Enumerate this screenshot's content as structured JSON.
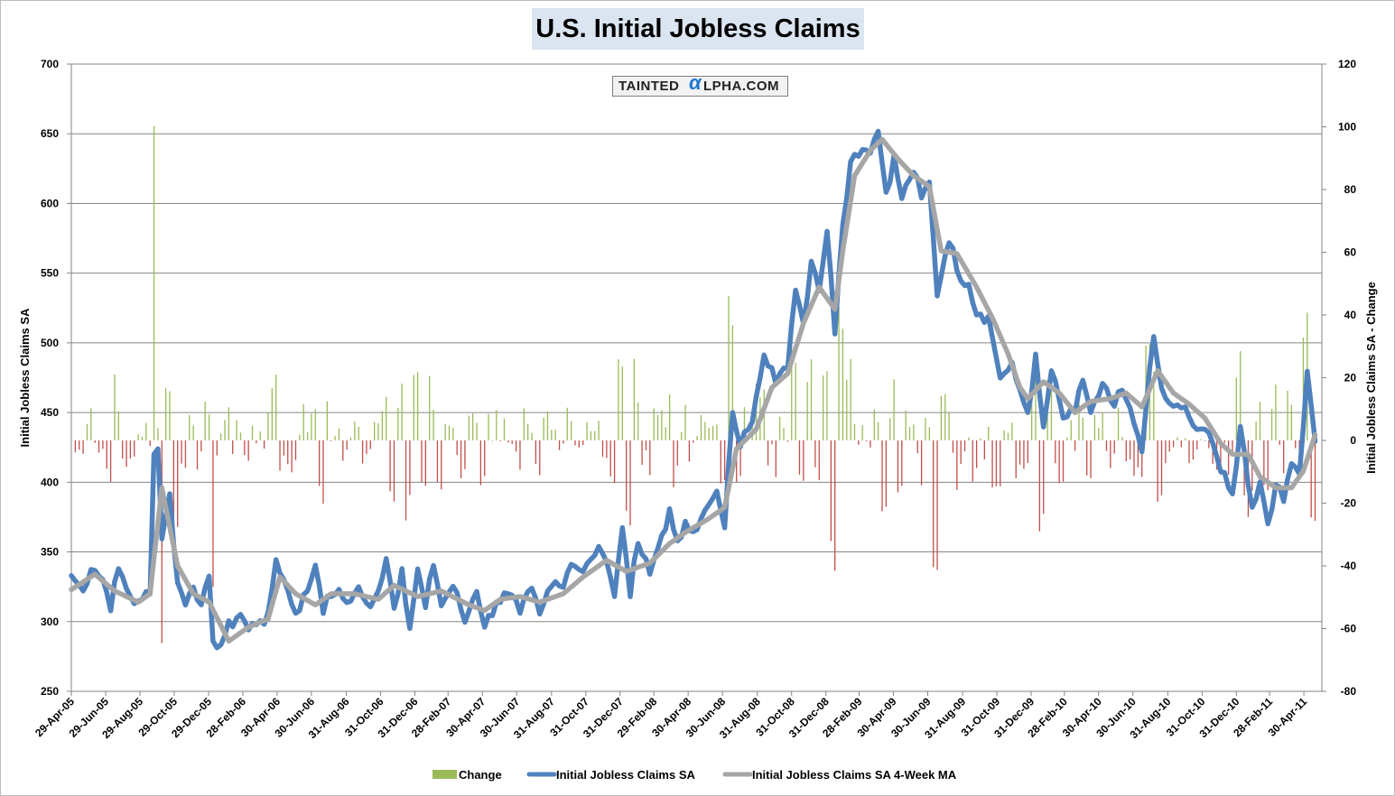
{
  "chart_data": {
    "type": "line",
    "title": "U.S. Initial Jobless Claims",
    "brand": {
      "prefix": "TAINTED",
      "alpha": "α",
      "suffix": "LPHA.COM"
    },
    "ylabel_left": "Initial Jobless Claims SA",
    "ylabel_right": "Initial Jobless Claims SA - Change",
    "ylim_left": [
      250,
      700
    ],
    "ylim_right": [
      -80,
      120
    ],
    "yticks_left": [
      "250",
      "300",
      "350",
      "400",
      "450",
      "500",
      "550",
      "600",
      "650",
      "700"
    ],
    "yticks_right": [
      "-80",
      "-60",
      "-40",
      "-20",
      "0",
      "20",
      "40",
      "60",
      "80",
      "100",
      "120"
    ],
    "x_tick_labels": [
      "29-Apr-05",
      "29-Jun-05",
      "29-Aug-05",
      "29-Oct-05",
      "29-Dec-05",
      "28-Feb-06",
      "30-Apr-06",
      "30-Jun-06",
      "31-Aug-06",
      "31-Oct-06",
      "31-Dec-06",
      "28-Feb-07",
      "30-Apr-07",
      "30-Jun-07",
      "31-Aug-07",
      "31-Oct-07",
      "31-Dec-07",
      "29-Feb-08",
      "30-Apr-08",
      "30-Jun-08",
      "31-Aug-08",
      "31-Oct-08",
      "31-Dec-08",
      "28-Feb-09",
      "30-Apr-09",
      "30-Jun-09",
      "31-Aug-09",
      "31-Oct-09",
      "31-Dec-09",
      "28-Feb-10",
      "30-Apr-10",
      "30-Jun-10",
      "31-Aug-10",
      "31-Oct-10",
      "31-Dec-10",
      "28-Feb-11",
      "30-Apr-11"
    ],
    "legend_position": "bottom",
    "grid": true,
    "x_start": "2005-04-29",
    "series": [
      {
        "name": "Change",
        "type": "bar",
        "axis": "right",
        "color_pos": "#9bbb59",
        "color_neg": "#c0504d"
      },
      {
        "name": "Initial Jobless Claims SA",
        "type": "line",
        "axis": "left",
        "color": "#4f81bd"
      },
      {
        "name": "Initial Jobless Claims SA 4-Week MA",
        "type": "line",
        "axis": "left",
        "color": "#a6a6a6"
      }
    ],
    "sa_anchors": [
      [
        "2005-04-29",
        333
      ],
      [
        "2005-05-20",
        322
      ],
      [
        "2005-06-03",
        340
      ],
      [
        "2005-06-24",
        330
      ],
      [
        "2005-07-08",
        312
      ],
      [
        "2005-07-22",
        338
      ],
      [
        "2005-08-12",
        318
      ],
      [
        "2005-08-26",
        312
      ],
      [
        "2005-09-09",
        320
      ],
      [
        "2005-09-16",
        324
      ],
      [
        "2005-09-23",
        420
      ],
      [
        "2005-09-30",
        424
      ],
      [
        "2005-10-07",
        362
      ],
      [
        "2005-10-21",
        390
      ],
      [
        "2005-11-04",
        328
      ],
      [
        "2005-11-18",
        312
      ],
      [
        "2005-12-02",
        328
      ],
      [
        "2005-12-16",
        312
      ],
      [
        "2005-12-30",
        328
      ],
      [
        "2006-01-06",
        286
      ],
      [
        "2006-01-20",
        284
      ],
      [
        "2006-02-03",
        296
      ],
      [
        "2006-02-24",
        306
      ],
      [
        "2006-03-10",
        294
      ],
      [
        "2006-03-24",
        300
      ],
      [
        "2006-04-14",
        302
      ],
      [
        "2006-04-28",
        345
      ],
      [
        "2006-05-12",
        330
      ],
      [
        "2006-06-02",
        306
      ],
      [
        "2006-06-23",
        322
      ],
      [
        "2006-07-07",
        342
      ],
      [
        "2006-07-21",
        310
      ],
      [
        "2006-08-11",
        322
      ],
      [
        "2006-09-01",
        314
      ],
      [
        "2006-09-22",
        324
      ],
      [
        "2006-10-13",
        308
      ],
      [
        "2006-10-27",
        322
      ],
      [
        "2006-11-10",
        348
      ],
      [
        "2006-11-24",
        310
      ],
      [
        "2006-12-08",
        338
      ],
      [
        "2006-12-22",
        296
      ],
      [
        "2007-01-05",
        336
      ],
      [
        "2007-01-19",
        310
      ],
      [
        "2007-02-02",
        342
      ],
      [
        "2007-02-16",
        312
      ],
      [
        "2007-03-09",
        326
      ],
      [
        "2007-03-30",
        300
      ],
      [
        "2007-04-20",
        324
      ],
      [
        "2007-05-04",
        296
      ],
      [
        "2007-05-25",
        314
      ],
      [
        "2007-06-15",
        320
      ],
      [
        "2007-07-06",
        306
      ],
      [
        "2007-07-27",
        324
      ],
      [
        "2007-08-10",
        304
      ],
      [
        "2007-08-31",
        330
      ],
      [
        "2007-09-21",
        326
      ],
      [
        "2007-10-05",
        344
      ],
      [
        "2007-10-26",
        334
      ],
      [
        "2007-11-16",
        350
      ],
      [
        "2007-12-07",
        348
      ],
      [
        "2007-12-21",
        318
      ],
      [
        "2008-01-04",
        368
      ],
      [
        "2008-01-18",
        322
      ],
      [
        "2008-02-01",
        356
      ],
      [
        "2008-02-22",
        334
      ],
      [
        "2008-03-14",
        362
      ],
      [
        "2008-03-28",
        378
      ],
      [
        "2008-04-11",
        354
      ],
      [
        "2008-04-25",
        372
      ],
      [
        "2008-05-16",
        366
      ],
      [
        "2008-06-06",
        384
      ],
      [
        "2008-06-20",
        390
      ],
      [
        "2008-07-04",
        370
      ],
      [
        "2008-07-18",
        450
      ],
      [
        "2008-08-01",
        430
      ],
      [
        "2008-08-22",
        448
      ],
      [
        "2008-09-12",
        488
      ],
      [
        "2008-10-03",
        474
      ],
      [
        "2008-10-24",
        486
      ],
      [
        "2008-11-07",
        540
      ],
      [
        "2008-11-21",
        514
      ],
      [
        "2008-12-05",
        560
      ],
      [
        "2008-12-19",
        540
      ],
      [
        "2009-01-02",
        580
      ],
      [
        "2009-01-16",
        510
      ],
      [
        "2009-01-30",
        588
      ],
      [
        "2009-02-13",
        630
      ],
      [
        "2009-02-27",
        638
      ],
      [
        "2009-03-20",
        640
      ],
      [
        "2009-04-03",
        652
      ],
      [
        "2009-04-17",
        608
      ],
      [
        "2009-05-01",
        632
      ],
      [
        "2009-05-15",
        604
      ],
      [
        "2009-06-05",
        624
      ],
      [
        "2009-06-19",
        604
      ],
      [
        "2009-07-03",
        614
      ],
      [
        "2009-07-17",
        536
      ],
      [
        "2009-08-07",
        576
      ],
      [
        "2009-08-21",
        552
      ],
      [
        "2009-09-11",
        542
      ],
      [
        "2009-09-25",
        522
      ],
      [
        "2009-10-16",
        518
      ],
      [
        "2009-11-06",
        476
      ],
      [
        "2009-11-27",
        482
      ],
      [
        "2009-12-11",
        466
      ],
      [
        "2009-12-25",
        450
      ],
      [
        "2010-01-08",
        488
      ],
      [
        "2010-01-22",
        438
      ],
      [
        "2010-02-05",
        480
      ],
      [
        "2010-02-26",
        446
      ],
      [
        "2010-03-19",
        450
      ],
      [
        "2010-04-02",
        474
      ],
      [
        "2010-04-16",
        450
      ],
      [
        "2010-05-07",
        468
      ],
      [
        "2010-05-28",
        454
      ],
      [
        "2010-06-11",
        466
      ],
      [
        "2010-07-02",
        442
      ],
      [
        "2010-07-16",
        426
      ],
      [
        "2010-08-06",
        504
      ],
      [
        "2010-08-20",
        466
      ],
      [
        "2010-09-10",
        452
      ],
      [
        "2010-10-01",
        454
      ],
      [
        "2010-10-22",
        434
      ],
      [
        "2010-11-12",
        440
      ],
      [
        "2010-12-03",
        408
      ],
      [
        "2010-12-24",
        390
      ],
      [
        "2011-01-07",
        440
      ],
      [
        "2011-01-28",
        382
      ],
      [
        "2011-02-11",
        400
      ],
      [
        "2011-02-25",
        372
      ],
      [
        "2011-03-11",
        398
      ],
      [
        "2011-03-25",
        386
      ],
      [
        "2011-04-08",
        418
      ],
      [
        "2011-04-22",
        406
      ],
      [
        "2011-05-06",
        478
      ],
      [
        "2011-05-20",
        432
      ]
    ],
    "ma_anchors": [
      [
        "2005-04-29",
        323
      ],
      [
        "2005-06-10",
        334
      ],
      [
        "2005-07-15",
        322
      ],
      [
        "2005-08-26",
        314
      ],
      [
        "2005-09-16",
        320
      ],
      [
        "2005-10-07",
        396
      ],
      [
        "2005-11-04",
        340
      ],
      [
        "2005-12-02",
        320
      ],
      [
        "2005-12-30",
        314
      ],
      [
        "2006-02-03",
        286
      ],
      [
        "2006-03-10",
        296
      ],
      [
        "2006-04-14",
        302
      ],
      [
        "2006-05-05",
        332
      ],
      [
        "2006-06-02",
        320
      ],
      [
        "2006-07-07",
        312
      ],
      [
        "2006-08-04",
        320
      ],
      [
        "2006-09-15",
        320
      ],
      [
        "2006-10-27",
        316
      ],
      [
        "2006-11-24",
        326
      ],
      [
        "2007-01-05",
        318
      ],
      [
        "2007-02-16",
        322
      ],
      [
        "2007-04-06",
        312
      ],
      [
        "2007-05-04",
        308
      ],
      [
        "2007-06-01",
        316
      ],
      [
        "2007-07-06",
        318
      ],
      [
        "2007-08-10",
        314
      ],
      [
        "2007-09-21",
        320
      ],
      [
        "2007-10-26",
        332
      ],
      [
        "2007-12-07",
        344
      ],
      [
        "2008-01-11",
        336
      ],
      [
        "2008-02-22",
        342
      ],
      [
        "2008-03-28",
        356
      ],
      [
        "2008-04-25",
        364
      ],
      [
        "2008-06-06",
        374
      ],
      [
        "2008-07-04",
        382
      ],
      [
        "2008-07-25",
        424
      ],
      [
        "2008-08-29",
        438
      ],
      [
        "2008-09-26",
        468
      ],
      [
        "2008-10-24",
        478
      ],
      [
        "2008-11-21",
        514
      ],
      [
        "2008-12-19",
        540
      ],
      [
        "2009-01-16",
        524
      ],
      [
        "2009-01-30",
        566
      ],
      [
        "2009-02-20",
        620
      ],
      [
        "2009-03-20",
        638
      ],
      [
        "2009-04-10",
        646
      ],
      [
        "2009-05-08",
        632
      ],
      [
        "2009-06-05",
        620
      ],
      [
        "2009-07-03",
        612
      ],
      [
        "2009-07-24",
        566
      ],
      [
        "2009-08-21",
        564
      ],
      [
        "2009-09-25",
        540
      ],
      [
        "2009-10-23",
        518
      ],
      [
        "2009-11-20",
        492
      ],
      [
        "2009-12-11",
        468
      ],
      [
        "2009-12-25",
        460
      ],
      [
        "2010-01-22",
        472
      ],
      [
        "2010-02-19",
        464
      ],
      [
        "2010-03-19",
        450
      ],
      [
        "2010-04-16",
        458
      ],
      [
        "2010-05-21",
        460
      ],
      [
        "2010-06-18",
        464
      ],
      [
        "2010-07-16",
        454
      ],
      [
        "2010-08-13",
        480
      ],
      [
        "2010-09-10",
        464
      ],
      [
        "2010-10-08",
        456
      ],
      [
        "2010-11-05",
        446
      ],
      [
        "2010-12-03",
        428
      ],
      [
        "2010-12-24",
        420
      ],
      [
        "2011-01-21",
        420
      ],
      [
        "2011-02-11",
        404
      ],
      [
        "2011-03-11",
        396
      ],
      [
        "2011-04-08",
        396
      ],
      [
        "2011-04-29",
        408
      ],
      [
        "2011-05-20",
        434
      ]
    ]
  }
}
